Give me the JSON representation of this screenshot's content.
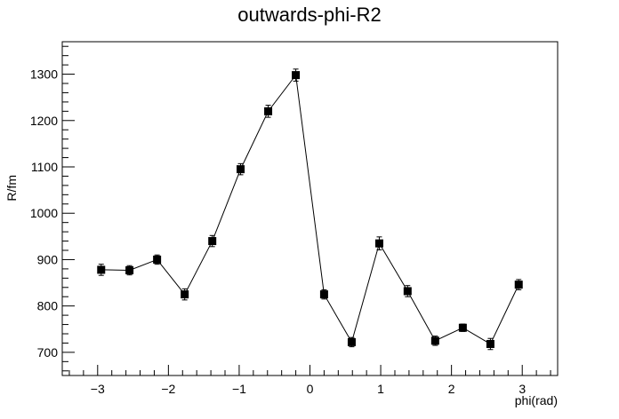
{
  "chart_data": {
    "type": "scatter",
    "title": "outwards-phi-R2",
    "xlabel": "phi(rad)",
    "ylabel": "R/fm",
    "xlim": [
      -3.5,
      3.5
    ],
    "ylim": [
      650,
      1370
    ],
    "x_ticks": [
      -3,
      -2,
      -1,
      0,
      1,
      2,
      3
    ],
    "x_tick_labels": [
      "−3",
      "−2",
      "−1",
      "0",
      "1",
      "2",
      "3"
    ],
    "y_ticks": [
      700,
      800,
      900,
      1000,
      1100,
      1200,
      1300
    ],
    "y_tick_labels": [
      "700",
      "800",
      "900",
      "1000",
      "1100",
      "1200",
      "1300"
    ],
    "grid": false,
    "legend": "none",
    "marker": "filled-square",
    "line": "connected",
    "series": [
      {
        "x": [
          -2.95,
          -2.55,
          -2.16,
          -1.77,
          -1.38,
          -0.98,
          -0.59,
          -0.2,
          0.2,
          0.59,
          0.98,
          1.38,
          1.77,
          2.16,
          2.55,
          2.95
        ],
        "y": [
          878,
          877,
          900,
          825,
          940,
          1095,
          1220,
          1298,
          825,
          722,
          935,
          832,
          725,
          753,
          718,
          846
        ],
        "err": [
          12,
          10,
          10,
          12,
          12,
          12,
          13,
          13,
          10,
          10,
          14,
          12,
          10,
          8,
          12,
          11
        ]
      }
    ]
  }
}
